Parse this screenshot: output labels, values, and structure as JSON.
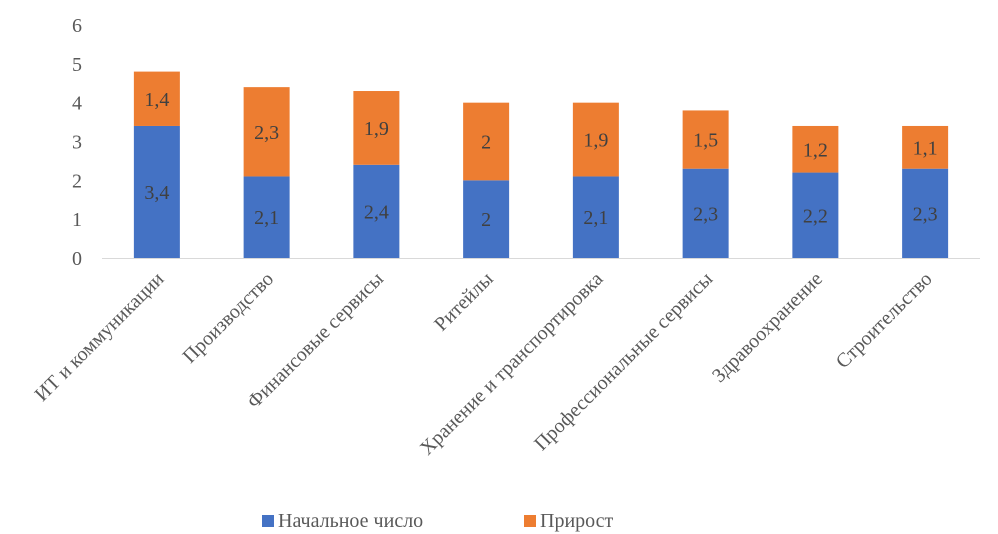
{
  "chart_data": {
    "type": "bar",
    "stacked": true,
    "categories": [
      "ИТ и коммуникации",
      "Производство",
      "Финансовые сервисы",
      "Ритейлы",
      "Хранение и транспортировка",
      "Профессиональные сервисы",
      "Здравоохранение",
      "Строительство"
    ],
    "series": [
      {
        "name": "Начальное число",
        "color": "#4472C4",
        "values": [
          3.4,
          2.1,
          2.4,
          2,
          2.1,
          2.3,
          2.2,
          2.3
        ],
        "labels": [
          "3,4",
          "2,1",
          "2,4",
          "2",
          "2,1",
          "2,3",
          "2,2",
          "2,3"
        ]
      },
      {
        "name": "Прирост",
        "color": "#ED7D31",
        "values": [
          1.4,
          2.3,
          1.9,
          2,
          1.9,
          1.5,
          1.2,
          1.1
        ],
        "labels": [
          "1,4",
          "2,3",
          "1,9",
          "2",
          "1,9",
          "1,5",
          "1,2",
          "1,1"
        ]
      }
    ],
    "ylim": [
      0,
      6
    ],
    "yticks": [
      "0",
      "1",
      "2",
      "3",
      "4",
      "5",
      "6"
    ],
    "grid": false,
    "legend_position": "bottom",
    "title": "",
    "xlabel": "",
    "ylabel": ""
  }
}
